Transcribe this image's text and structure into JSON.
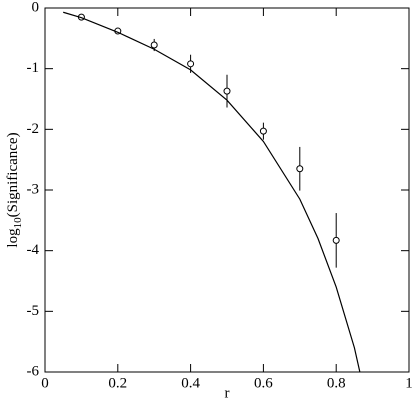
{
  "chart_data": {
    "type": "scatter",
    "xlabel": "r",
    "ylabel": [
      "log",
      "10",
      "(Significance)"
    ],
    "xlim": [
      0,
      1
    ],
    "xticks": [
      0,
      0.2,
      0.4,
      0.6,
      0.8,
      1
    ],
    "ylim": [
      -6,
      0
    ],
    "yticks": [
      -6,
      -5,
      -4,
      -3,
      -2,
      -1,
      0
    ],
    "series": [
      {
        "color": "#000000",
        "marker": "circle",
        "x": [
          0.1,
          0.2,
          0.3,
          0.4,
          0.5,
          0.6,
          0.7,
          0.8
        ],
        "values": [
          -0.15,
          -0.38,
          -0.61,
          -0.92,
          -1.37,
          -2.03,
          -2.65,
          -3.83
        ],
        "errors": [
          0.05,
          0.05,
          0.1,
          0.15,
          0.27,
          0.14,
          0.36,
          0.45
        ]
      },
      {
        "color": "#000000",
        "marker": "line",
        "x": [
          0.05,
          0.1,
          0.2,
          0.3,
          0.4,
          0.5,
          0.6,
          0.7,
          0.75,
          0.8,
          0.85,
          0.865
        ],
        "values": [
          -0.07,
          -0.16,
          -0.4,
          -0.68,
          -1.02,
          -1.52,
          -2.2,
          -3.15,
          -3.8,
          -4.6,
          -5.6,
          -6
        ]
      }
    ]
  }
}
